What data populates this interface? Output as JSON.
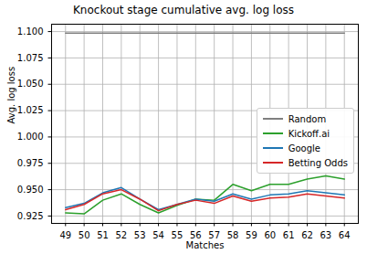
{
  "chart_data": {
    "type": "line",
    "title": "Knockout stage cumulative avg. log loss",
    "x_label": "Matches",
    "y_label": "Avg. log loss",
    "x": [
      49,
      50,
      51,
      52,
      53,
      54,
      55,
      56,
      57,
      58,
      59,
      60,
      61,
      62,
      63,
      64
    ],
    "series": [
      {
        "name": "Random",
        "color": "#7f7f7f",
        "values": [
          1.0986,
          1.0986,
          1.0986,
          1.0986,
          1.0986,
          1.0986,
          1.0986,
          1.0986,
          1.0986,
          1.0986,
          1.0986,
          1.0986,
          1.0986,
          1.0986,
          1.0986,
          1.0986
        ]
      },
      {
        "name": "Kickoff.ai",
        "color": "#2ca02c",
        "values": [
          0.928,
          0.927,
          0.94,
          0.946,
          0.936,
          0.928,
          0.935,
          0.941,
          0.94,
          0.955,
          0.949,
          0.955,
          0.955,
          0.96,
          0.963,
          0.96
        ]
      },
      {
        "name": "Google",
        "color": "#1f77b4",
        "values": [
          0.933,
          0.937,
          0.947,
          0.952,
          0.941,
          0.931,
          0.936,
          0.941,
          0.939,
          0.946,
          0.941,
          0.945,
          0.946,
          0.949,
          0.947,
          0.945
        ]
      },
      {
        "name": "Betting Odds",
        "color": "#d62728",
        "values": [
          0.931,
          0.936,
          0.946,
          0.95,
          0.941,
          0.93,
          0.936,
          0.94,
          0.937,
          0.944,
          0.939,
          0.942,
          0.943,
          0.946,
          0.944,
          0.942
        ]
      }
    ],
    "xlim": [
      48.25,
      64.75
    ],
    "xticks": [
      49,
      50,
      51,
      52,
      53,
      54,
      55,
      56,
      57,
      58,
      59,
      60,
      61,
      62,
      63,
      64
    ],
    "ylim": [
      0.918,
      1.107
    ],
    "yticks": [
      0.925,
      {
        "value": 0.95,
        "label": "0.950"
      },
      0.975,
      {
        "value": 1.0,
        "label": "1.000"
      },
      1.025,
      {
        "value": 1.05,
        "label": "1.050"
      },
      1.075,
      {
        "value": 1.1,
        "label": "1.100"
      }
    ],
    "grid": true,
    "legend": "right"
  }
}
